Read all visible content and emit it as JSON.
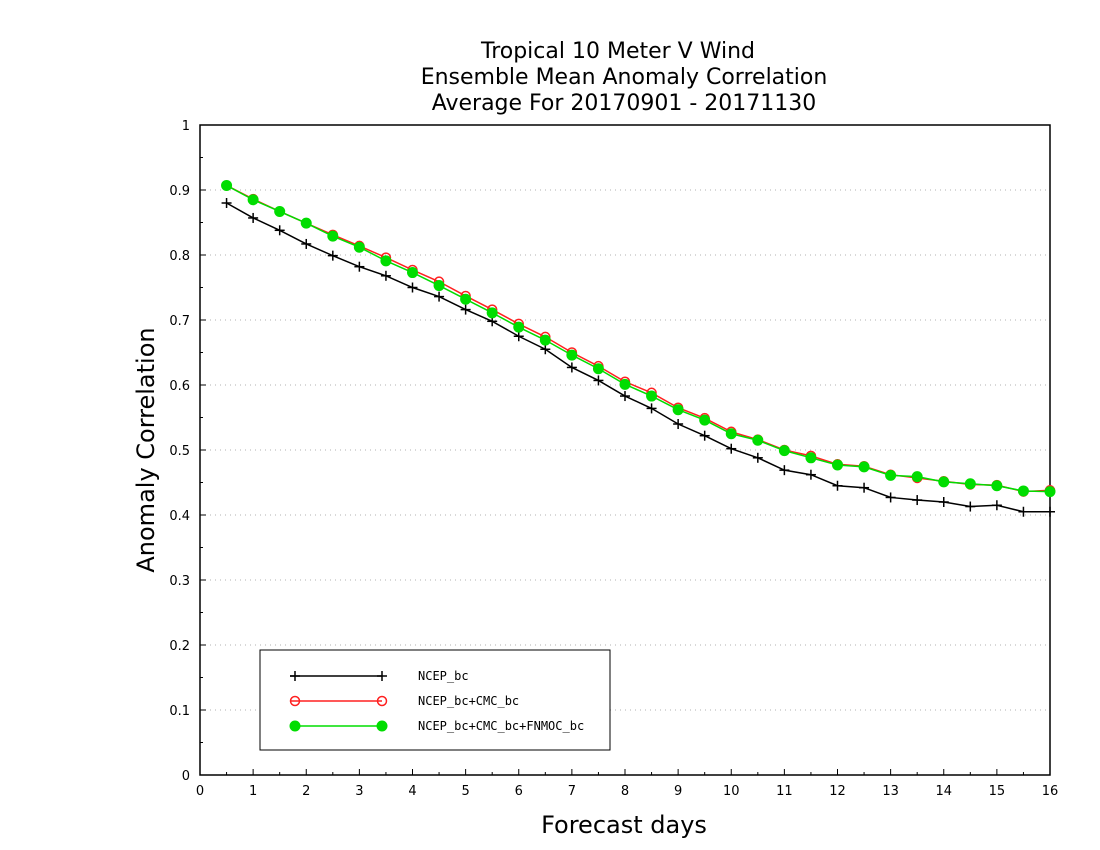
{
  "chart_data": {
    "type": "line",
    "title": [
      "Tropical 10 Meter V Wind",
      "Ensemble Mean Anomaly Correlation",
      "Average For 20170901 - 20171130"
    ],
    "xlabel": "Forecast days",
    "ylabel": "Anomaly Correlation",
    "xlim": [
      0,
      16
    ],
    "ylim": [
      0,
      1
    ],
    "xticks": [
      "0",
      "1",
      "2",
      "3",
      "4",
      "5",
      "6",
      "7",
      "8",
      "9",
      "10",
      "11",
      "12",
      "13",
      "14",
      "15",
      "16"
    ],
    "yticks": [
      "0",
      "0.1",
      "0.2",
      "0.3",
      "0.4",
      "0.5",
      "0.6",
      "0.7",
      "0.8",
      "0.9",
      "1"
    ],
    "grid": true,
    "legend_position": "bottom-left",
    "x": [
      0.5,
      1,
      1.5,
      2,
      2.5,
      3,
      3.5,
      4,
      4.5,
      5,
      5.5,
      6,
      6.5,
      7,
      7.5,
      8,
      8.5,
      9,
      9.5,
      10,
      10.5,
      11,
      11.5,
      12,
      12.5,
      13,
      13.5,
      14,
      14.5,
      15,
      15.5,
      16
    ],
    "series": [
      {
        "name": "NCEP_bc",
        "color": "#000000",
        "marker": "plus",
        "values": [
          0.88,
          0.857,
          0.838,
          0.817,
          0.799,
          0.782,
          0.768,
          0.75,
          0.736,
          0.716,
          0.698,
          0.675,
          0.655,
          0.627,
          0.607,
          0.583,
          0.564,
          0.54,
          0.522,
          0.502,
          0.488,
          0.469,
          0.462,
          0.445,
          0.442,
          0.427,
          0.423,
          0.42,
          0.413,
          0.415,
          0.405,
          0.405
        ]
      },
      {
        "name": "NCEP_bc+CMC_bc",
        "color": "#ff2020",
        "marker": "open-circle",
        "values": [
          0.907,
          0.886,
          0.867,
          0.849,
          0.831,
          0.814,
          0.796,
          0.777,
          0.759,
          0.737,
          0.716,
          0.694,
          0.674,
          0.65,
          0.629,
          0.605,
          0.588,
          0.565,
          0.549,
          0.528,
          0.516,
          0.5,
          0.491,
          0.478,
          0.475,
          0.462,
          0.457,
          0.452,
          0.447,
          0.446,
          0.436,
          0.438
        ]
      },
      {
        "name": "NCEP_bc+CMC_bc+FNMOC_bc",
        "color": "#00dd00",
        "marker": "filled-circle",
        "values": [
          0.907,
          0.885,
          0.867,
          0.849,
          0.829,
          0.812,
          0.791,
          0.773,
          0.753,
          0.732,
          0.711,
          0.689,
          0.669,
          0.646,
          0.625,
          0.601,
          0.583,
          0.562,
          0.546,
          0.525,
          0.515,
          0.499,
          0.488,
          0.477,
          0.474,
          0.461,
          0.459,
          0.451,
          0.448,
          0.445,
          0.437,
          0.436
        ]
      }
    ]
  }
}
